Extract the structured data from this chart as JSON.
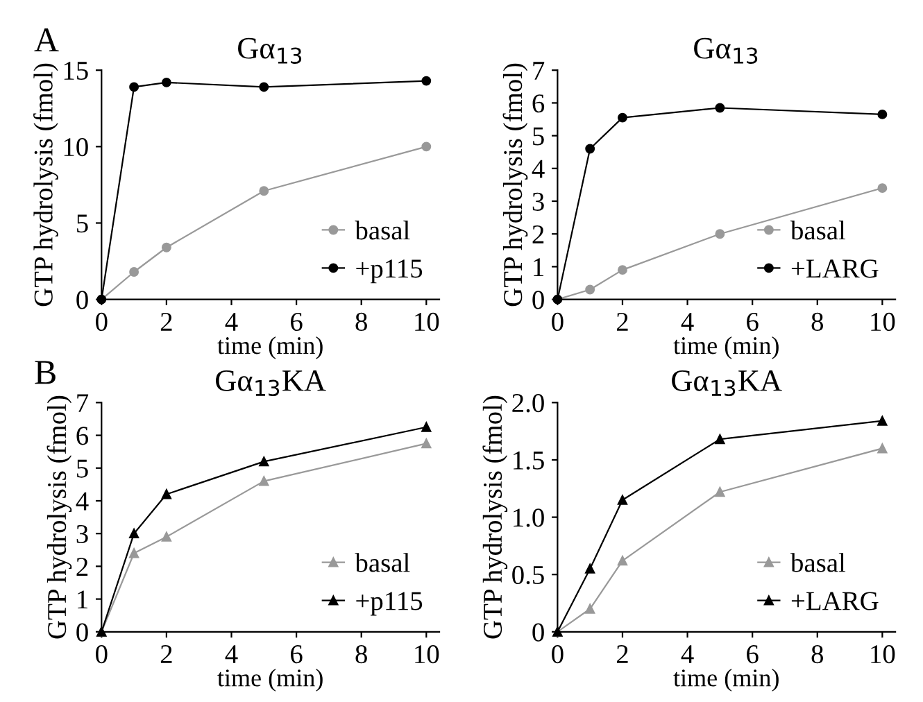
{
  "chart_data": [
    {
      "type": "line",
      "title": "Gα$_{13}$",
      "xlabel": "time (min)",
      "ylabel": "GTP hydrolysis (fmol)",
      "annotations": [
        "A"
      ],
      "x": [
        0,
        1,
        2,
        5,
        10
      ],
      "xlim": [
        0,
        10.4
      ],
      "xticks": [
        0,
        2,
        4,
        6,
        8,
        10
      ],
      "ylim": [
        0,
        15
      ],
      "yticks": [
        0,
        5,
        10,
        15
      ],
      "legend": "bottom right",
      "grid": false,
      "series": [
        {
          "name": "basal",
          "color": "#999999",
          "marker": "circle",
          "values": [
            0,
            1.8,
            3.4,
            7.1,
            10.0
          ]
        },
        {
          "name": "+p115",
          "color": "#000000",
          "marker": "circle",
          "values": [
            0,
            13.9,
            14.2,
            13.9,
            14.3
          ]
        }
      ]
    },
    {
      "type": "line",
      "title": "Gα$_{13}$",
      "xlabel": "time (min)",
      "ylabel": "GTP hydrolysis (fmol)",
      "x": [
        0,
        1,
        2,
        5,
        10
      ],
      "xlim": [
        0,
        10.4
      ],
      "xticks": [
        0,
        2,
        4,
        6,
        8,
        10
      ],
      "ylim": [
        0,
        7
      ],
      "yticks": [
        0,
        1,
        2,
        3,
        4,
        5,
        6,
        7
      ],
      "legend": "bottom right",
      "grid": false,
      "series": [
        {
          "name": "basal",
          "color": "#999999",
          "marker": "circle",
          "values": [
            0,
            0.3,
            0.9,
            2.0,
            3.4
          ]
        },
        {
          "name": "+LARG",
          "color": "#000000",
          "marker": "circle",
          "values": [
            0,
            4.6,
            5.55,
            5.85,
            5.65
          ]
        }
      ]
    },
    {
      "type": "line",
      "title": "Gα$_{13}$KA",
      "xlabel": "time (min)",
      "ylabel": "GTP hydrolysis (fmol)",
      "annotations": [
        "B"
      ],
      "x": [
        0,
        1,
        2,
        5,
        10
      ],
      "xlim": [
        0,
        10.4
      ],
      "xticks": [
        0,
        2,
        4,
        6,
        8,
        10
      ],
      "ylim": [
        0,
        7
      ],
      "yticks": [
        0,
        1,
        2,
        3,
        4,
        5,
        6,
        7
      ],
      "legend": "bottom right",
      "grid": false,
      "series": [
        {
          "name": "basal",
          "color": "#999999",
          "marker": "triangle",
          "values": [
            0,
            2.4,
            2.9,
            4.6,
            5.75
          ]
        },
        {
          "name": "+p115",
          "color": "#000000",
          "marker": "triangle",
          "values": [
            0,
            3.0,
            4.2,
            5.2,
            6.25
          ]
        }
      ]
    },
    {
      "type": "line",
      "title": "Gα$_{13}$KA",
      "xlabel": "time (min)",
      "ylabel": "GTP hydrolysis (fmol)",
      "x": [
        0,
        1,
        2,
        5,
        10
      ],
      "xlim": [
        0,
        10.4
      ],
      "xticks": [
        0,
        2,
        4,
        6,
        8,
        10
      ],
      "ylim": [
        0,
        2
      ],
      "yticks": [
        0,
        {
          "value": 0.5,
          "label": "0.5"
        },
        {
          "value": 1,
          "label": "1.0"
        },
        {
          "value": 1.5,
          "label": "1.5"
        },
        {
          "value": 2,
          "label": "2.0"
        }
      ],
      "legend": "bottom right",
      "grid": false,
      "series": [
        {
          "name": "basal",
          "color": "#999999",
          "marker": "triangle",
          "values": [
            0,
            0.2,
            0.62,
            1.22,
            1.6
          ]
        },
        {
          "name": "+LARG",
          "color": "#000000",
          "marker": "triangle",
          "values": [
            0,
            0.55,
            1.15,
            1.68,
            1.84
          ]
        }
      ]
    }
  ]
}
